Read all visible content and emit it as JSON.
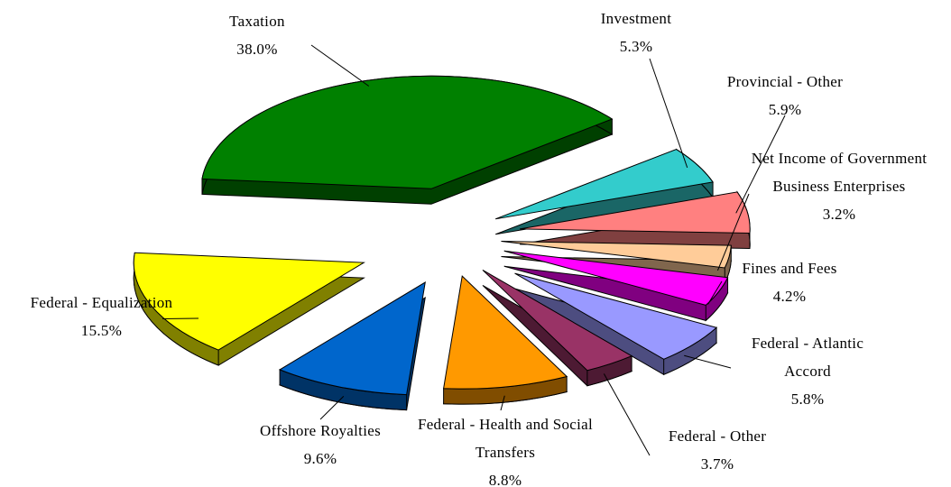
{
  "chart_data": {
    "type": "pie",
    "categories": [
      "Taxation",
      "Investment",
      "Provincial - Other",
      "Net Income of Government Business Enterprises",
      "Fines and Fees",
      "Federal - Atlantic Accord",
      "Federal - Other",
      "Federal - Health and Social Transfers",
      "Offshore Royalties",
      "Federal - Equalization"
    ],
    "values": [
      38.0,
      5.3,
      5.9,
      3.2,
      4.2,
      5.8,
      3.7,
      8.8,
      9.6,
      15.5
    ],
    "value_labels": [
      "38.0%",
      "5.3%",
      "5.9%",
      "3.2%",
      "4.2%",
      "5.8%",
      "3.7%",
      "8.8%",
      "9.6%",
      "15.5%"
    ],
    "colors": [
      "#008000",
      "#33CCCC",
      "#FF8080",
      "#FFCC99",
      "#FF00FF",
      "#9999FF",
      "#993366",
      "#FF9900",
      "#0066CC",
      "#FFFF00"
    ]
  }
}
